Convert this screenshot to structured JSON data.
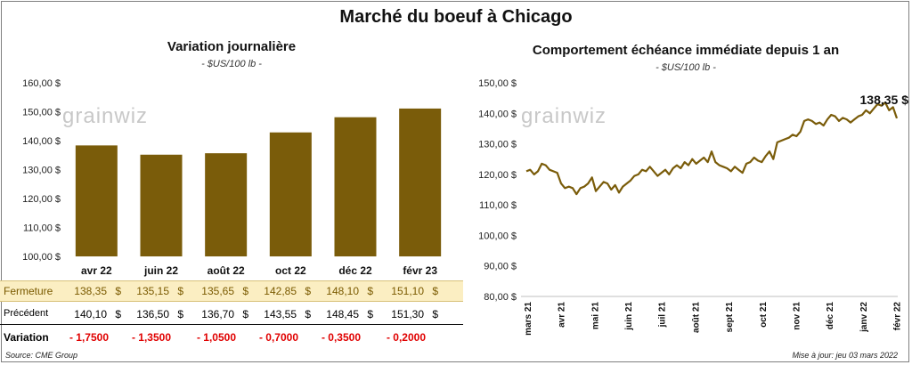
{
  "page": {
    "title": "Marché du boeuf à Chicago",
    "source": "Source: CME Group",
    "updated": "Mise à jour: jeu 03 mars 2022",
    "watermark": "grainwiz"
  },
  "left_chart": {
    "title": "Variation journalière",
    "unit": "- $US/100 lb -"
  },
  "right_chart": {
    "title": "Comportement échéance immédiate depuis 1 an",
    "unit": "- $US/100 lb -",
    "last_value_label": "138,35 $"
  },
  "table": {
    "rows": [
      {
        "label": "Fermeture",
        "values": [
          "138,35",
          "135,15",
          "135,65",
          "142,85",
          "148,10",
          "151,10"
        ]
      },
      {
        "label": "Précédent",
        "values": [
          "140,10",
          "136,50",
          "136,70",
          "143,55",
          "148,45",
          "151,30"
        ]
      },
      {
        "label": "Variation",
        "values": [
          "- 1,7500",
          "- 1,3500",
          "- 1,0500",
          "- 0,7000",
          "- 0,3500",
          "- 0,2000"
        ]
      }
    ],
    "currency": "$"
  },
  "colors": {
    "bar": "#7a5c0a",
    "line": "#7a5c0a",
    "close_row_bg": "#fbeec2",
    "negative": "#e00000"
  },
  "chart_data": [
    {
      "type": "bar",
      "title": "Variation journalière",
      "categories": [
        "avr 22",
        "juin 22",
        "août 22",
        "oct 22",
        "déc 22",
        "févr 23"
      ],
      "series": [
        {
          "values": [
            138.35,
            135.15,
            135.65,
            142.85,
            148.1,
            151.1
          ]
        }
      ],
      "ylim": [
        100,
        160
      ],
      "yticks": [
        "100,00 $",
        "110,00 $",
        "120,00 $",
        "130,00 $",
        "140,00 $",
        "150,00 $",
        "160,00 $"
      ],
      "grid": false
    },
    {
      "type": "line",
      "title": "Comportement échéance immédiate depuis 1 an",
      "x_labels": [
        "mars 21",
        "avr 21",
        "mai 21",
        "juin 21",
        "juil 21",
        "août 21",
        "sept 21",
        "oct 21",
        "nov 21",
        "déc 21",
        "janv 22",
        "févr 22"
      ],
      "series": [
        {
          "values": [
            121.0,
            121.5,
            120.0,
            121.0,
            123.5,
            123.0,
            121.5,
            121.0,
            120.5,
            117.0,
            115.5,
            116.0,
            115.5,
            113.5,
            115.5,
            116.0,
            117.0,
            119.0,
            114.5,
            116.0,
            117.5,
            117.0,
            115.0,
            116.5,
            114.0,
            116.0,
            117.0,
            118.0,
            119.5,
            120.0,
            121.5,
            121.0,
            122.5,
            121.0,
            119.5,
            120.5,
            121.5,
            120.0,
            122.0,
            123.0,
            122.0,
            124.0,
            123.0,
            125.0,
            123.5,
            124.5,
            125.5,
            124.0,
            127.5,
            124.0,
            123.0,
            122.5,
            122.0,
            121.0,
            122.5,
            121.5,
            120.5,
            123.5,
            124.0,
            125.5,
            124.5,
            124.0,
            126.0,
            127.5,
            125.0,
            130.5,
            131.0,
            131.5,
            132.0,
            133.0,
            132.5,
            134.0,
            137.5,
            138.0,
            137.5,
            136.5,
            137.0,
            136.0,
            138.0,
            139.5,
            139.0,
            137.5,
            138.5,
            138.0,
            137.0,
            138.0,
            139.0,
            139.5,
            141.0,
            140.0,
            141.5,
            143.0,
            142.5,
            143.5,
            141.0,
            142.0,
            138.35
          ]
        }
      ],
      "ylim": [
        80,
        150
      ],
      "yticks": [
        "80,00 $",
        "90,00 $",
        "100,00 $",
        "110,00 $",
        "120,00 $",
        "130,00 $",
        "140,00 $",
        "150,00 $"
      ],
      "grid": false
    }
  ]
}
